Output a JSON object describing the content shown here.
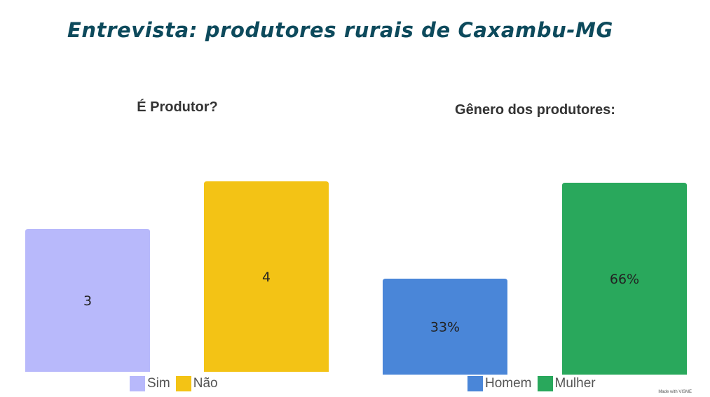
{
  "title": "Entrevista: produtores rurais de Caxambu-MG",
  "watermark": "Made with VISME",
  "chart_data": [
    {
      "type": "bar",
      "title": "É Produtor?",
      "categories": [
        "Sim",
        "Não"
      ],
      "values": [
        3,
        4
      ],
      "value_labels": [
        "3",
        "4"
      ],
      "colors": [
        "#b8b9fb",
        "#f3c315"
      ],
      "ylim": [
        0,
        4
      ],
      "grid": false,
      "legend": "bottom-center"
    },
    {
      "type": "bar",
      "title": "Gênero dos produtores:",
      "categories": [
        "Homem",
        "Mulher"
      ],
      "values": [
        33,
        66
      ],
      "value_labels": [
        "33%",
        "66%"
      ],
      "colors": [
        "#4a86d8",
        "#29a85c"
      ],
      "ylim": [
        0,
        66
      ],
      "grid": false,
      "legend": "bottom-center"
    }
  ]
}
